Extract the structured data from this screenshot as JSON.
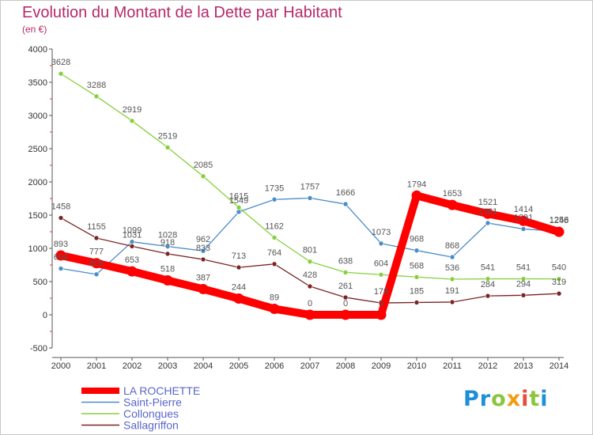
{
  "chart_data": {
    "type": "line",
    "title": "Evolution du Montant de la Dette par Habitant",
    "subtitle": "(en €)",
    "xlabel": "",
    "ylabel": "",
    "x": [
      2000,
      2001,
      2002,
      2003,
      2004,
      2005,
      2006,
      2007,
      2008,
      2009,
      2010,
      2011,
      2012,
      2013,
      2014
    ],
    "ylim": [
      -500,
      4000
    ],
    "yticks": [
      -500,
      0,
      500,
      1000,
      1500,
      2000,
      2500,
      3000,
      3500,
      4000
    ],
    "grid": false,
    "legend_position": "bottom-left",
    "series": [
      {
        "name": "LA ROCHETTE",
        "color": "#ff0000",
        "emphasis": true,
        "values": [
          893,
          777,
          653,
          518,
          387,
          244,
          89,
          0,
          0,
          0,
          1794,
          1653,
          1521,
          1414,
          1248
        ]
      },
      {
        "name": "Saint-Pierre",
        "color": "#4a8cc8",
        "values": [
          696,
          609,
          1099,
          1028,
          962,
          1549,
          1735,
          1757,
          1666,
          1073,
          968,
          868,
          1381,
          1291,
          1256
        ]
      },
      {
        "name": "Collongues",
        "color": "#86d03c",
        "values": [
          3628,
          3288,
          2919,
          2519,
          2085,
          1615,
          1162,
          801,
          638,
          604,
          568,
          536,
          541,
          541,
          540
        ]
      },
      {
        "name": "Sallagriffon",
        "color": "#7a2424",
        "values": [
          1458,
          1155,
          1031,
          918,
          833,
          713,
          764,
          428,
          261,
          178,
          185,
          191,
          284,
          294,
          319
        ]
      }
    ]
  },
  "logo": {
    "letters": [
      {
        "char": "P",
        "color": "#1d8fd8"
      },
      {
        "char": "r",
        "color": "#1d8fd8"
      },
      {
        "char": "o",
        "color": "#8cc63f"
      },
      {
        "char": "x",
        "color": "#f39c12"
      },
      {
        "char": "i",
        "color": "#e74c3c"
      },
      {
        "char": "t",
        "color": "#8cc63f"
      },
      {
        "char": "i",
        "color": "#1d8fd8"
      }
    ]
  }
}
